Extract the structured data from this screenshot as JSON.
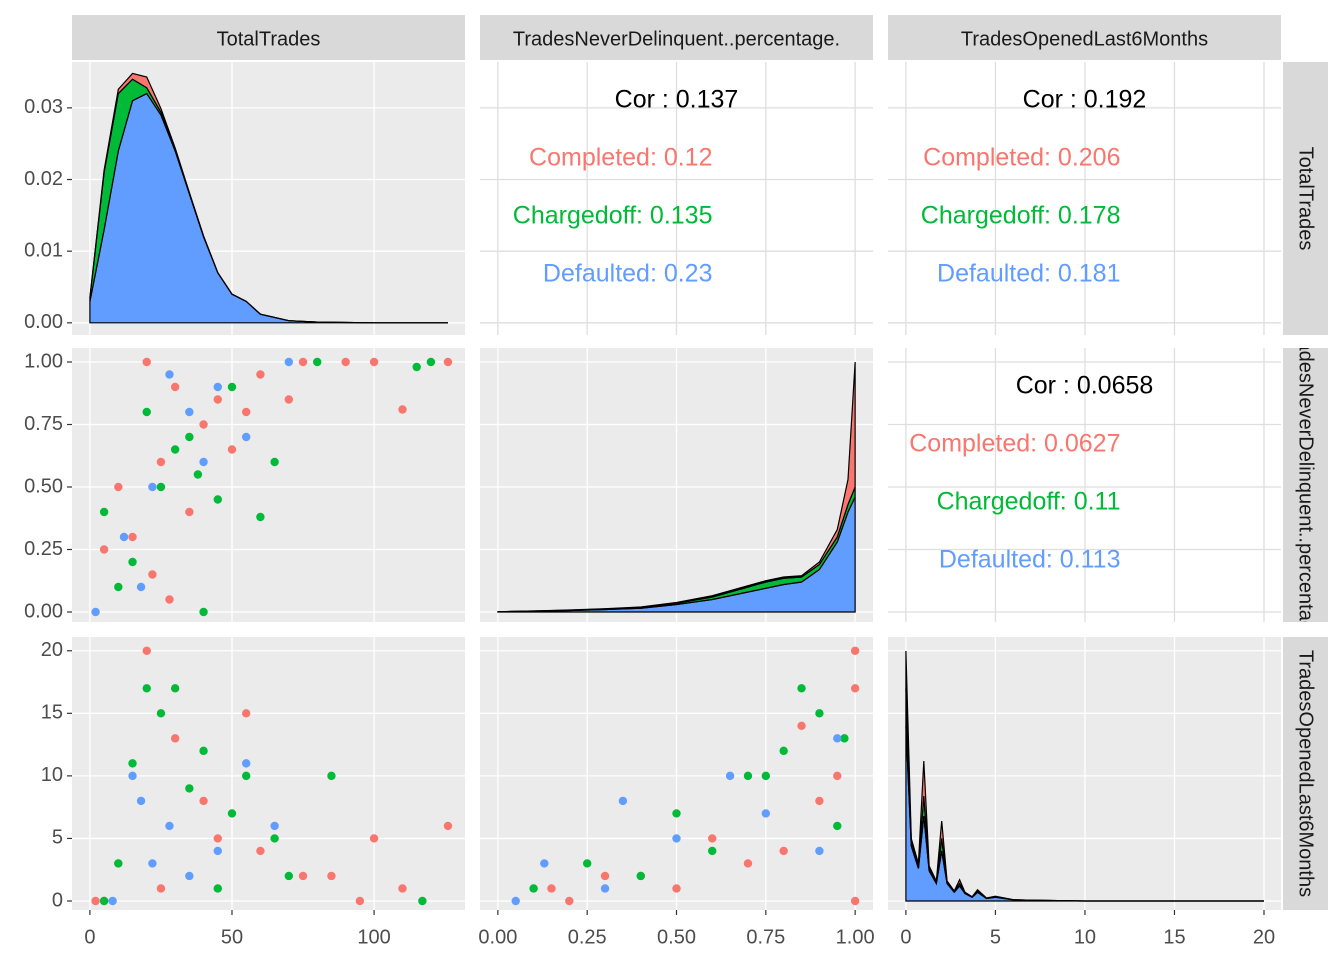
{
  "chart_data": {
    "type": "pairs",
    "variables": [
      "TotalTrades",
      "TradesNeverDelinquent..percentage.",
      "TradesOpenedLast6Months"
    ],
    "group_colors": [
      "#F8766D",
      "#00BA38",
      "#619CFF"
    ],
    "xaxes": [
      {
        "lim": [
          -6.3,
          132
        ],
        "ticks": [
          0,
          50,
          100
        ]
      },
      {
        "lim": [
          -0.05,
          1.05
        ],
        "ticks": [
          {
            "value": 0,
            "label": "0.00"
          },
          0.25,
          {
            "value": 0.5,
            "label": "0.50"
          },
          0.75,
          {
            "value": 1,
            "label": "1.00"
          }
        ]
      },
      {
        "lim": [
          -1,
          20.95
        ],
        "ticks": [
          0,
          5,
          10,
          15,
          20
        ]
      }
    ],
    "yaxes": [
      {
        "lim": [
          -0.0017,
          0.0364
        ],
        "ticks": [
          {
            "value": 0,
            "label": "0.00"
          },
          0.01,
          0.02,
          0.03
        ]
      },
      {
        "lim": [
          -0.04,
          1.056
        ],
        "ticks": [
          {
            "value": 0,
            "label": "0.00"
          },
          0.25,
          {
            "value": 0.5,
            "label": "0.50"
          },
          0.75,
          {
            "value": 1,
            "label": "1.00"
          }
        ]
      },
      {
        "lim": [
          -0.72,
          21.1
        ],
        "ticks": [
          0,
          5,
          10,
          15,
          20
        ]
      }
    ],
    "panels": [
      [
        {
          "type": "density",
          "ylim": [
            -0.0017,
            0.0364
          ],
          "x": [
            0,
            5,
            10,
            15,
            20,
            25,
            30,
            35,
            40,
            45,
            50,
            55,
            60,
            70,
            80,
            100,
            126
          ],
          "series": [
            {
              "values": [
                0,
                0.0003,
                0.0006,
                0.0008,
                0.0015,
                0.0005,
                0.0002,
                0.0001,
                0,
                0,
                0,
                0,
                0,
                0,
                0,
                0,
                0
              ]
            },
            {
              "values": [
                0.0005,
                0.008,
                0.008,
                0.003,
                0.0008,
                0.0004,
                0.0002,
                0.0001,
                0.0001,
                0,
                0,
                0,
                0,
                0,
                0,
                0,
                0
              ]
            },
            {
              "values": [
                0.003,
                0.013,
                0.024,
                0.031,
                0.032,
                0.029,
                0.024,
                0.018,
                0.012,
                0.007,
                0.004,
                0.003,
                0.0012,
                0.0003,
                0.0001,
                0,
                0
              ]
            }
          ]
        },
        {
          "type": "correlation",
          "values": [
            0.137,
            0.12,
            0.135,
            0.23
          ],
          "value_labels": [
            "Cor : 0.137",
            "Completed: 0.12",
            "Chargedoff: 0.135",
            "Defaulted: 0.23"
          ]
        },
        {
          "type": "correlation",
          "values": [
            0.192,
            0.206,
            0.178,
            0.181
          ],
          "value_labels": [
            "Cor : 0.192",
            "Completed: 0.206",
            "Chargedoff: 0.178",
            "Defaulted: 0.181"
          ]
        }
      ],
      [
        {
          "type": "scatter",
          "series": [
            {
              "x": [
                20,
                30,
                45,
                60,
                75,
                90,
                100,
                126,
                10,
                25,
                40,
                55,
                35,
                15,
                50,
                70,
                110,
                5,
                22,
                28
              ],
              "y": [
                1,
                0.9,
                0.85,
                0.95,
                1,
                1,
                1,
                1,
                0.5,
                0.6,
                0.75,
                0.8,
                0.4,
                0.3,
                0.65,
                0.85,
                0.81,
                0.25,
                0.15,
                0.05
              ]
            },
            {
              "x": [
                15,
                25,
                35,
                50,
                65,
                80,
                115,
                120,
                5,
                20,
                40,
                38,
                60,
                10,
                30,
                45
              ],
              "y": [
                0.2,
                0.5,
                0.7,
                0.9,
                0.6,
                1,
                0.98,
                1,
                0.4,
                0.8,
                0,
                0.55,
                0.38,
                0.1,
                0.65,
                0.45
              ]
            },
            {
              "x": [
                2,
                12,
                22,
                35,
                45,
                55,
                40,
                18,
                28,
                70
              ],
              "y": [
                0,
                0.3,
                0.5,
                0.8,
                0.9,
                0.7,
                0.6,
                0.1,
                0.95,
                1
              ]
            }
          ]
        },
        {
          "type": "density",
          "ylim": [
            -0.4,
            10.56
          ],
          "x": [
            0,
            0.1,
            0.2,
            0.3,
            0.4,
            0.5,
            0.6,
            0.7,
            0.75,
            0.8,
            0.85,
            0.9,
            0.95,
            0.98,
            1
          ],
          "series": [
            {
              "values": [
                0,
                0,
                0.01,
                0.01,
                0.02,
                0.03,
                0.05,
                0.05,
                0.05,
                0.05,
                0.05,
                0.1,
                0.3,
                1.0,
                5.0
              ]
            },
            {
              "values": [
                0,
                0.01,
                0.01,
                0.02,
                0.03,
                0.05,
                0.1,
                0.2,
                0.25,
                0.25,
                0.2,
                0.2,
                0.2,
                0.3,
                0.4
              ]
            },
            {
              "values": [
                0.01,
                0.03,
                0.06,
                0.1,
                0.15,
                0.3,
                0.5,
                0.8,
                0.95,
                1.1,
                1.2,
                1.7,
                2.8,
                4.0,
                4.6
              ]
            }
          ]
        },
        {
          "type": "correlation",
          "values": [
            0.0658,
            0.0627,
            0.11,
            0.113
          ],
          "value_labels": [
            "Cor : 0.0658",
            "Completed: 0.0627",
            "Chargedoff: 0.11",
            "Defaulted: 0.113"
          ]
        }
      ],
      [
        {
          "type": "scatter",
          "series": [
            {
              "x": [
                20,
                30,
                55,
                100,
                126,
                10,
                40,
                60,
                85,
                110,
                5,
                25,
                75,
                95,
                45,
                2
              ],
              "y": [
                20,
                13,
                15,
                5,
                6,
                3,
                8,
                4,
                2,
                1,
                0,
                1,
                2,
                0,
                5,
                0
              ]
            },
            {
              "x": [
                20,
                25,
                30,
                40,
                55,
                85,
                117,
                15,
                35,
                50,
                65,
                10,
                45,
                5,
                70
              ],
              "y": [
                17,
                15,
                17,
                12,
                10,
                10,
                0,
                11,
                9,
                7,
                5,
                3,
                1,
                0,
                2
              ]
            },
            {
              "x": [
                15,
                18,
                28,
                45,
                55,
                65,
                35,
                8,
                22
              ],
              "y": [
                10,
                8,
                6,
                4,
                11,
                6,
                2,
                0,
                3
              ]
            }
          ]
        },
        {
          "type": "scatter",
          "series": [
            {
              "x": [
                1,
                1,
                0.85,
                0.95,
                0.5,
                0.3,
                0.7,
                0.9,
                1,
                0.6,
                0.2,
                0.15,
                0.8,
                0.4
              ],
              "y": [
                20,
                17,
                14,
                10,
                1,
                2,
                3,
                8,
                0,
                5,
                0,
                1,
                4,
                2
              ]
            },
            {
              "x": [
                0.85,
                0.9,
                0.97,
                0.7,
                0.75,
                0.5,
                0.4,
                0.1,
                0.25,
                0.95,
                0.6,
                0.8
              ],
              "y": [
                17,
                15,
                13,
                10,
                10,
                7,
                2,
                1,
                3,
                6,
                4,
                12
              ]
            },
            {
              "x": [
                0.65,
                0.35,
                0.95,
                0.13,
                0.5,
                0.75,
                0.3,
                0.05,
                0.9
              ],
              "y": [
                10,
                8,
                13,
                3,
                5,
                7,
                1,
                0,
                4
              ]
            }
          ]
        },
        {
          "type": "density",
          "ylim": [
            -0.36,
            10.56
          ],
          "x": [
            0,
            0.3,
            0.7,
            1,
            1.3,
            1.7,
            2,
            2.3,
            2.7,
            3,
            3.3,
            3.7,
            4,
            4.5,
            5,
            6,
            7,
            10,
            20
          ],
          "series": [
            {
              "values": [
                1.5,
                0.1,
                0.1,
                1.4,
                0.1,
                0.05,
                0.7,
                0.05,
                0.02,
                0.15,
                0.02,
                0.01,
                0.05,
                0.01,
                0.02,
                0,
                0,
                0,
                0
              ]
            },
            {
              "values": [
                1.5,
                0.2,
                0.1,
                0.8,
                0.1,
                0.05,
                0.5,
                0.05,
                0.03,
                0.1,
                0.03,
                0.01,
                0.05,
                0.01,
                0.02,
                0,
                0,
                0,
                0
              ]
            },
            {
              "values": [
                7,
                2.2,
                1.3,
                3.4,
                1.2,
                0.7,
                2,
                0.7,
                0.35,
                0.6,
                0.3,
                0.15,
                0.35,
                0.1,
                0.15,
                0.05,
                0.03,
                0,
                0
              ]
            }
          ]
        }
      ]
    ]
  }
}
